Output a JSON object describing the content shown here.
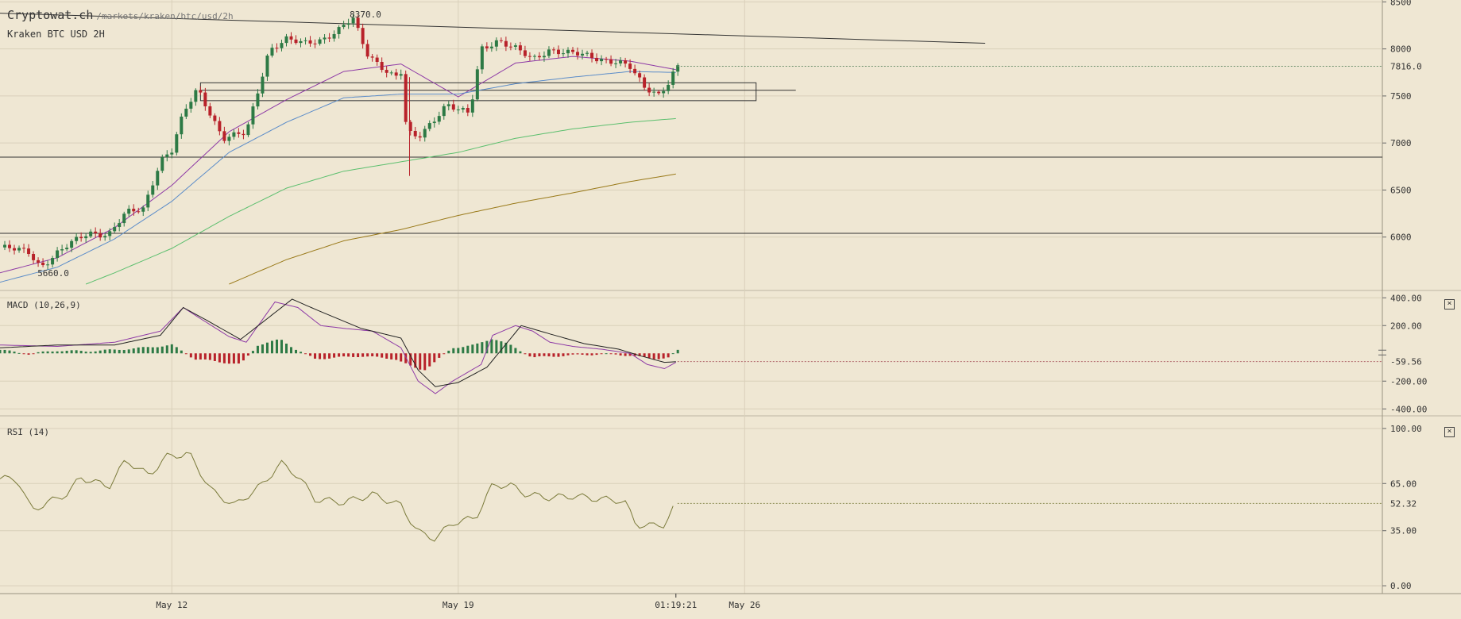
{
  "site": {
    "name": "Cryptowat.ch",
    "path": "/markets/kraken/btc/usd/2h"
  },
  "pair_label": "Kraken BTC USD 2H",
  "chart_data": [
    {
      "type": "candlestick",
      "title": "Kraken BTC USD 2H",
      "ylim": [
        5500,
        8520
      ],
      "yticks": [
        {
          "v": 8500,
          "label": "8500"
        },
        {
          "v": 8000,
          "label": "8000"
        },
        {
          "v": 7500,
          "label": "7500"
        },
        {
          "v": 7000,
          "label": "7000"
        },
        {
          "v": 6500,
          "label": "6500"
        },
        {
          "v": 6000,
          "label": "6000"
        }
      ],
      "xlabels": [
        {
          "x": 3.0,
          "label": "May 12"
        },
        {
          "x": 8.0,
          "label": "May 19"
        },
        {
          "x": 13.0,
          "label": "May 26"
        }
      ],
      "time_label": "01:19:21",
      "last_price": {
        "value": 7816.0,
        "label": "7816.0"
      },
      "annotations": [
        {
          "x": 6.16,
          "y": 8370,
          "label": "8370.0"
        },
        {
          "x": 0.71,
          "y": 5660,
          "label": "5660.0"
        }
      ],
      "horizontal_lines": [
        6850,
        6040
      ],
      "trendline": {
        "x0": 0,
        "y0": 8380,
        "x1": 17.2,
        "y1": 8060
      },
      "range_box": {
        "x0": 3.5,
        "x1": 13.2,
        "y0": 7450,
        "y1": 7640
      },
      "grid": true,
      "candles_anchors": [
        [
          0.0,
          5890
        ],
        [
          0.5,
          5840
        ],
        [
          0.71,
          5690
        ],
        [
          1.0,
          5830
        ],
        [
          1.3,
          5950
        ],
        [
          1.55,
          6050
        ],
        [
          1.9,
          6030
        ],
        [
          2.2,
          6250
        ],
        [
          2.5,
          6300
        ],
        [
          2.8,
          6820
        ],
        [
          3.0,
          6920
        ],
        [
          3.2,
          7300
        ],
        [
          3.45,
          7580
        ],
        [
          3.9,
          7050
        ],
        [
          4.3,
          7100
        ],
        [
          4.7,
          8000
        ],
        [
          5.0,
          8100
        ],
        [
          5.3,
          8050
        ],
        [
          5.6,
          8100
        ],
        [
          5.9,
          8200
        ],
        [
          6.16,
          8320
        ],
        [
          6.4,
          7950
        ],
        [
          6.9,
          7700
        ],
        [
          7.0,
          7750
        ],
        [
          7.1,
          7100
        ],
        [
          7.3,
          7050
        ],
        [
          7.5,
          7200
        ],
        [
          7.8,
          7420
        ],
        [
          8.0,
          7350
        ],
        [
          8.2,
          7300
        ],
        [
          8.4,
          8000
        ],
        [
          8.7,
          8100
        ],
        [
          9.0,
          8000
        ],
        [
          9.3,
          7880
        ],
        [
          9.6,
          8000
        ],
        [
          10.0,
          7950
        ],
        [
          10.4,
          7900
        ],
        [
          10.8,
          7870
        ],
        [
          11.0,
          7800
        ],
        [
          11.25,
          7580
        ],
        [
          11.5,
          7520
        ],
        [
          11.7,
          7680
        ],
        [
          11.8,
          7816
        ]
      ],
      "moving_averages": [
        {
          "color": "#8e3aa6",
          "values": [
            [
              0,
              5620
            ],
            [
              1,
              5780
            ],
            [
              2,
              6100
            ],
            [
              3,
              6550
            ],
            [
              4,
              7120
            ],
            [
              5,
              7460
            ],
            [
              6,
              7760
            ],
            [
              7,
              7840
            ],
            [
              8,
              7490
            ],
            [
              9,
              7850
            ],
            [
              10,
              7920
            ],
            [
              11,
              7870
            ],
            [
              11.8,
              7780
            ]
          ]
        },
        {
          "color": "#5b8cc9",
          "values": [
            [
              0,
              5520
            ],
            [
              1,
              5680
            ],
            [
              2,
              5980
            ],
            [
              3,
              6380
            ],
            [
              4,
              6900
            ],
            [
              5,
              7220
            ],
            [
              6,
              7480
            ],
            [
              7,
              7520
            ],
            [
              8,
              7520
            ],
            [
              9,
              7630
            ],
            [
              10,
              7700
            ],
            [
              11,
              7760
            ],
            [
              11.8,
              7750
            ]
          ]
        },
        {
          "color": "#5cbf6e",
          "values": [
            [
              1.5,
              5500
            ],
            [
              2,
              5620
            ],
            [
              3,
              5880
            ],
            [
              4,
              6220
            ],
            [
              5,
              6520
            ],
            [
              6,
              6700
            ],
            [
              7,
              6800
            ],
            [
              8,
              6900
            ],
            [
              9,
              7050
            ],
            [
              10,
              7150
            ],
            [
              11,
              7220
            ],
            [
              11.8,
              7260
            ]
          ]
        },
        {
          "color": "#9a7a1a",
          "values": [
            [
              4,
              5500
            ],
            [
              5,
              5760
            ],
            [
              6,
              5960
            ],
            [
              7,
              6080
            ],
            [
              8,
              6230
            ],
            [
              9,
              6360
            ],
            [
              10,
              6470
            ],
            [
              11,
              6590
            ],
            [
              11.8,
              6670
            ]
          ]
        }
      ]
    },
    {
      "type": "line",
      "title": "MACD (10,26,9)",
      "ylim": [
        -410,
        430
      ],
      "yticks": [
        {
          "v": 400,
          "label": "400.00"
        },
        {
          "v": 200,
          "label": "200.00"
        },
        {
          "v": -200,
          "label": "-200.00"
        },
        {
          "v": -400,
          "label": "-400.00"
        }
      ],
      "last": {
        "value": -59.56,
        "label": "-59.56"
      },
      "series": [
        {
          "color": "#8e3aa6",
          "points": [
            [
              0,
              60
            ],
            [
              1,
              50
            ],
            [
              2,
              80
            ],
            [
              2.8,
              160
            ],
            [
              3.2,
              330
            ],
            [
              3.5,
              250
            ],
            [
              4.0,
              120
            ],
            [
              4.3,
              80
            ],
            [
              4.8,
              370
            ],
            [
              5.2,
              330
            ],
            [
              5.6,
              200
            ],
            [
              6.0,
              180
            ],
            [
              6.5,
              160
            ],
            [
              7.0,
              40
            ],
            [
              7.3,
              -200
            ],
            [
              7.6,
              -290
            ],
            [
              7.9,
              -200
            ],
            [
              8.4,
              -80
            ],
            [
              8.6,
              130
            ],
            [
              9.0,
              200
            ],
            [
              9.3,
              160
            ],
            [
              9.6,
              80
            ],
            [
              10.0,
              50
            ],
            [
              10.5,
              30
            ],
            [
              11.0,
              0
            ],
            [
              11.3,
              -80
            ],
            [
              11.6,
              -110
            ],
            [
              11.8,
              -65
            ]
          ]
        },
        {
          "color": "#222222",
          "points": [
            [
              0,
              40
            ],
            [
              1,
              60
            ],
            [
              2,
              60
            ],
            [
              2.8,
              130
            ],
            [
              3.2,
              330
            ],
            [
              3.6,
              240
            ],
            [
              4.2,
              100
            ],
            [
              5.1,
              390
            ],
            [
              5.6,
              300
            ],
            [
              6.3,
              180
            ],
            [
              7.0,
              110
            ],
            [
              7.3,
              -120
            ],
            [
              7.6,
              -240
            ],
            [
              8.0,
              -210
            ],
            [
              8.5,
              -100
            ],
            [
              9.1,
              200
            ],
            [
              9.6,
              140
            ],
            [
              10.2,
              70
            ],
            [
              10.8,
              30
            ],
            [
              11.2,
              -20
            ],
            [
              11.6,
              -65
            ],
            [
              11.8,
              -60
            ]
          ]
        }
      ],
      "histogram": [
        [
          0,
          25
        ],
        [
          0.5,
          -5
        ],
        [
          1,
          20
        ],
        [
          1.5,
          15
        ],
        [
          2,
          25
        ],
        [
          2.5,
          40
        ],
        [
          3,
          60
        ],
        [
          3.4,
          -40
        ],
        [
          3.8,
          -60
        ],
        [
          4.2,
          -80
        ],
        [
          4.5,
          60
        ],
        [
          4.9,
          100
        ],
        [
          5.2,
          20
        ],
        [
          5.5,
          -40
        ],
        [
          5.9,
          -30
        ],
        [
          6.3,
          -20
        ],
        [
          6.6,
          -30
        ],
        [
          6.9,
          -40
        ],
        [
          7.2,
          -100
        ],
        [
          7.4,
          -120
        ],
        [
          7.6,
          -60
        ],
        [
          7.9,
          40
        ],
        [
          8.3,
          60
        ],
        [
          8.6,
          110
        ],
        [
          8.9,
          60
        ],
        [
          9.3,
          -30
        ],
        [
          9.7,
          -20
        ],
        [
          10.2,
          -10
        ],
        [
          10.6,
          -5
        ],
        [
          11.0,
          -15
        ],
        [
          11.4,
          -40
        ],
        [
          11.7,
          -30
        ],
        [
          11.8,
          20
        ]
      ]
    },
    {
      "type": "line",
      "title": "RSI (14)",
      "ylim": [
        -5,
        105
      ],
      "yticks": [
        {
          "v": 100,
          "label": "100.00"
        },
        {
          "v": 65,
          "label": "65.00"
        },
        {
          "v": 35,
          "label": "35.00"
        },
        {
          "v": 0,
          "label": "0.00"
        }
      ],
      "last": {
        "value": 52.32,
        "label": "52.32"
      },
      "series": [
        {
          "color": "#7a7a3a",
          "points": [
            [
              0,
              68
            ],
            [
              0.3,
              68
            ],
            [
              0.55,
              48
            ],
            [
              0.9,
              54
            ],
            [
              1.2,
              59
            ],
            [
              1.4,
              69
            ],
            [
              1.9,
              63
            ],
            [
              2.2,
              80
            ],
            [
              2.6,
              70
            ],
            [
              2.9,
              82
            ],
            [
              3.3,
              84
            ],
            [
              3.7,
              60
            ],
            [
              4.1,
              51
            ],
            [
              4.6,
              65
            ],
            [
              4.9,
              78
            ],
            [
              5.2,
              70
            ],
            [
              5.5,
              55
            ],
            [
              6.0,
              53
            ],
            [
              6.5,
              58
            ],
            [
              7.0,
              51
            ],
            [
              7.3,
              34
            ],
            [
              7.6,
              30
            ],
            [
              7.9,
              40
            ],
            [
              8.3,
              43
            ],
            [
              8.6,
              64
            ],
            [
              8.9,
              64
            ],
            [
              9.2,
              58
            ],
            [
              9.6,
              56
            ],
            [
              10.0,
              57
            ],
            [
              10.5,
              55
            ],
            [
              10.9,
              54
            ],
            [
              11.1,
              39
            ],
            [
              11.4,
              38
            ],
            [
              11.6,
              39
            ],
            [
              11.8,
              52
            ]
          ]
        }
      ]
    }
  ]
}
